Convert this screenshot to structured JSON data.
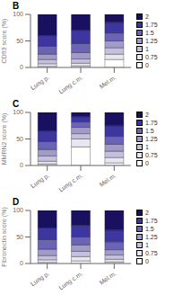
{
  "chart_data": [
    {
      "type": "bar",
      "title": "B",
      "stacked": true,
      "ylabel": "CD93 score (%)",
      "categories": [
        "Lung p.",
        "Lung c.m.",
        "Mel.m."
      ],
      "series": [
        {
          "name": "0",
          "color": "#ffffff",
          "values": [
            2,
            3,
            15
          ]
        },
        {
          "name": "0.75",
          "color": "#e8e6f0",
          "values": [
            5,
            5,
            10
          ]
        },
        {
          "name": "1",
          "color": "#c5c0dc",
          "values": [
            8,
            8,
            12
          ]
        },
        {
          "name": "1.25",
          "color": "#a09bc8",
          "values": [
            10,
            12,
            13
          ]
        },
        {
          "name": "1.5",
          "color": "#6b63b5",
          "values": [
            15,
            17,
            15
          ]
        },
        {
          "name": "1.75",
          "color": "#3d35a0",
          "values": [
            20,
            25,
            20
          ]
        },
        {
          "name": "2",
          "color": "#1a1060",
          "values": [
            40,
            30,
            15
          ]
        }
      ],
      "ylim": [
        0,
        100
      ],
      "yticks": [
        0,
        50,
        100
      ],
      "grid": false,
      "legend": "right"
    },
    {
      "type": "bar",
      "title": "C",
      "stacked": true,
      "ylabel": "MMRN2 score (%)",
      "categories": [
        "Lung p.",
        "Lung c.m.",
        "Mel.m."
      ],
      "series": [
        {
          "name": "0",
          "color": "#ffffff",
          "values": [
            3,
            35,
            5
          ]
        },
        {
          "name": "0.75",
          "color": "#e8e6f0",
          "values": [
            5,
            15,
            10
          ]
        },
        {
          "name": "1",
          "color": "#c5c0dc",
          "values": [
            10,
            10,
            12
          ]
        },
        {
          "name": "1.25",
          "color": "#a09bc8",
          "values": [
            12,
            12,
            13
          ]
        },
        {
          "name": "1.5",
          "color": "#6b63b5",
          "values": [
            15,
            10,
            15
          ]
        },
        {
          "name": "1.75",
          "color": "#3d35a0",
          "values": [
            20,
            10,
            20
          ]
        },
        {
          "name": "2",
          "color": "#1a1060",
          "values": [
            35,
            8,
            25
          ]
        }
      ],
      "ylim": [
        0,
        100
      ],
      "yticks": [
        0,
        50,
        100
      ],
      "grid": false,
      "legend": "right"
    },
    {
      "type": "bar",
      "title": "D",
      "stacked": true,
      "ylabel": "Fibronectin score (%)",
      "categories": [
        "Lung p.",
        "Lung c.m.",
        "Mel.m."
      ],
      "series": [
        {
          "name": "0",
          "color": "#ffffff",
          "values": [
            2,
            5,
            3
          ]
        },
        {
          "name": "0.75",
          "color": "#e8e6f0",
          "values": [
            5,
            8,
            5
          ]
        },
        {
          "name": "1",
          "color": "#c5c0dc",
          "values": [
            8,
            10,
            8
          ]
        },
        {
          "name": "1.25",
          "color": "#a09bc8",
          "values": [
            12,
            12,
            10
          ]
        },
        {
          "name": "1.5",
          "color": "#6b63b5",
          "values": [
            18,
            15,
            15
          ]
        },
        {
          "name": "1.75",
          "color": "#3d35a0",
          "values": [
            22,
            22,
            22
          ]
        },
        {
          "name": "2",
          "color": "#1a1060",
          "values": [
            33,
            28,
            37
          ]
        }
      ],
      "ylim": [
        0,
        100
      ],
      "yticks": [
        0,
        50,
        100
      ],
      "grid": false,
      "legend": "right"
    }
  ]
}
